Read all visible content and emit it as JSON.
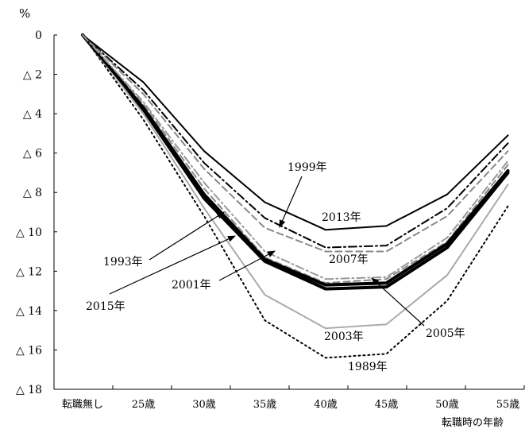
{
  "chart_data": {
    "type": "line",
    "title": "",
    "ylabel": "%",
    "xlabel": "転職時の年齢",
    "categories": [
      "転職無し",
      "25歳",
      "30歳",
      "35歳",
      "40歳",
      "45歳",
      "50歳",
      "55歳"
    ],
    "ylim": [
      0,
      18
    ],
    "y_inverted": true,
    "y_ticks": [
      0,
      2,
      4,
      6,
      8,
      10,
      12,
      14,
      16,
      18
    ],
    "y_tick_labels": [
      "0",
      "△ 2",
      "△ 4",
      "△ 6",
      "△ 8",
      "△ 10",
      "△ 12",
      "△ 14",
      "△ 16",
      "△ 18"
    ],
    "grid": false,
    "legend": "direct labels with arrows",
    "series": [
      {
        "name": "1989年",
        "values": [
          0,
          4.3,
          9.2,
          14.5,
          16.4,
          16.2,
          13.5,
          8.7
        ],
        "color": "#000000",
        "style": "dotted"
      },
      {
        "name": "1993年",
        "values": [
          0,
          3.8,
          8.3,
          11.5,
          12.9,
          12.8,
          10.8,
          7.0
        ],
        "color": "#000000",
        "style": "thick"
      },
      {
        "name": "1999年",
        "values": [
          0,
          2.8,
          6.5,
          9.3,
          10.8,
          10.7,
          8.8,
          5.5
        ],
        "color": "#000000",
        "style": "dashdot"
      },
      {
        "name": "2001年",
        "values": [
          0,
          3.5,
          7.8,
          11.3,
          12.6,
          12.4,
          10.5,
          6.6
        ],
        "color": "#888888",
        "style": "dashed"
      },
      {
        "name": "2003年",
        "values": [
          0,
          4.0,
          8.8,
          13.2,
          14.9,
          14.7,
          12.2,
          7.6
        ],
        "color": "#aaaaaa",
        "style": "solid"
      },
      {
        "name": "2005年",
        "values": [
          0,
          3.7,
          8.1,
          11.4,
          12.7,
          12.6,
          10.6,
          6.9
        ],
        "color": "#000000",
        "style": "thick"
      },
      {
        "name": "2007年",
        "values": [
          0,
          3.0,
          6.8,
          9.8,
          11.0,
          11.0,
          9.2,
          5.9
        ],
        "color": "#888888",
        "style": "dashed"
      },
      {
        "name": "2013年",
        "values": [
          0,
          2.4,
          5.9,
          8.5,
          9.9,
          9.7,
          8.1,
          5.1
        ],
        "color": "#000000",
        "style": "solid"
      },
      {
        "name": "2015年",
        "values": [
          0,
          3.4,
          7.5,
          11.0,
          12.4,
          12.3,
          10.3,
          6.4
        ],
        "color": "#999999",
        "style": "dashdot"
      }
    ],
    "annotations": [
      {
        "text": "1999年"
      },
      {
        "text": "2013年"
      },
      {
        "text": "2007年"
      },
      {
        "text": "1993年"
      },
      {
        "text": "2001年"
      },
      {
        "text": "2015年"
      },
      {
        "text": "2003年"
      },
      {
        "text": "2005年"
      },
      {
        "text": "1989年"
      }
    ]
  }
}
